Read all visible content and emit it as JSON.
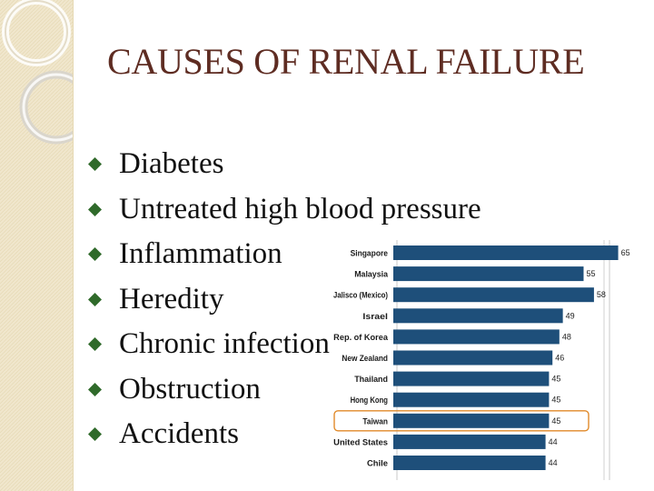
{
  "slide": {
    "title": "CAUSES OF RENAL FAILURE",
    "bullets": [
      "Diabetes",
      "Untreated high blood pressure",
      "Inflammation",
      "Heredity",
      "Chronic infection",
      "Obstruction",
      "Accidents"
    ],
    "bullet_icon": "diamond-bullet-icon",
    "colors": {
      "title": "#5e2c22",
      "bullet": "#2f6a2a",
      "sidebar": "#f0e6cc"
    }
  },
  "chart_data": {
    "type": "bar",
    "orientation": "horizontal",
    "title": "",
    "xlabel": "",
    "ylabel": "",
    "categories": [
      "Singapore",
      "Malaysia",
      "Jalisco (Mexico)",
      "Israel",
      "Rep. of Korea",
      "New Zealand",
      "Thailand",
      "Hong Kong",
      "Taiwan",
      "United States",
      "Chile"
    ],
    "value_labels": [
      "65",
      "55",
      "58",
      "49",
      "48",
      "46",
      "45",
      "45",
      "45",
      "44",
      "44"
    ],
    "values": [
      65,
      55,
      58,
      49,
      48,
      46,
      45,
      45,
      45,
      44,
      44
    ],
    "highlighted": "Taiwan",
    "xlim": [
      0,
      68
    ],
    "bar_color": "#1e4f7a",
    "highlight_color": "#e08a2a",
    "grid": true
  }
}
